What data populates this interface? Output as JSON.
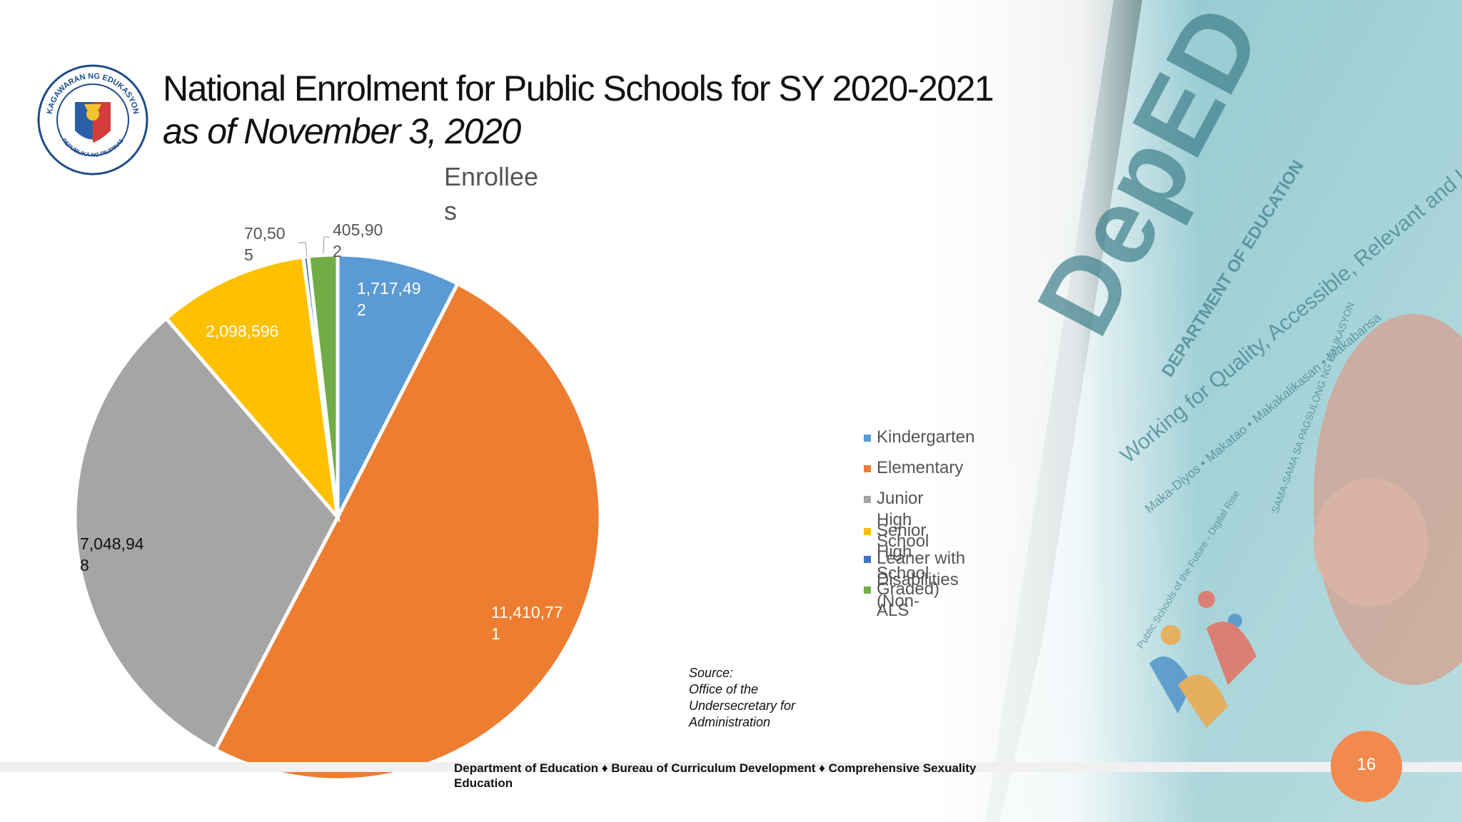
{
  "slide": {
    "title_line1": "National Enrolment for Public Schools for SY 2020-2021",
    "title_line2": "as of November 3, 2020",
    "source_heading": "Source:",
    "source_body": "Office of the Undersecretary for Administration",
    "footer": "Department of Education ♦ Bureau of Curriculum Development ♦ Comprehensive Sexuality Education",
    "page_number": "16",
    "logo": {
      "icon": "deped-seal-icon",
      "text_top": "KAGAWARAN NG EDUKASYON",
      "text_bottom": "REPUBLIKA NG PILIPINAS"
    },
    "background_photo": {
      "icon": "tablet-photo-icon",
      "text": [
        "DepED",
        "DEPARTMENT OF EDUCATION",
        "Working for Quality, Accessible, Relevant and Liberating Education",
        "Maka-Diyos • Makatao • Makakalikasan • Makabansa",
        "Public Schools of the Future - Digital Rise",
        "SAMA-SAMA SA PAGSULONG NG EDUKASYON"
      ]
    }
  },
  "colors": {
    "accent": "#f28a50"
  },
  "chart_data": {
    "type": "pie",
    "title": "Enrollees",
    "start_angle_deg": 0,
    "direction": "clockwise",
    "categories": [
      "Kindergarten",
      "Elementary",
      "Junior High School",
      "Senior High School",
      "Leaner with Disabilities (Non-Graded)",
      "ALS"
    ],
    "values": [
      1717492,
      11410771,
      7048948,
      2098596,
      70505,
      405902
    ],
    "data_labels": [
      "1,717,492",
      "11,410,771",
      "7,048,948",
      "2,098,596",
      "70,505",
      "405,902"
    ],
    "data_label_lines": [
      [
        "1,717,49",
        "2"
      ],
      [
        "11,410,77",
        "1"
      ],
      [
        "7,048,94",
        "8"
      ],
      [
        "2,098,596"
      ],
      [
        "70,50",
        "5"
      ],
      [
        "405,90",
        "2"
      ]
    ],
    "label_color": [
      "#ffffff",
      "#ffffff",
      "#111111",
      "#ffffff",
      "#555555",
      "#555555"
    ],
    "colors": [
      "#5b9bd5",
      "#ed7d31",
      "#a5a5a5",
      "#ffc000",
      "#4472c4",
      "#70ad47"
    ],
    "legend": {
      "position": "right",
      "entries": [
        "Kindergarten",
        "Elementary",
        "Junior High School",
        "Senior High School",
        "Leaner with Disabilities (Non-",
        "Graded)  ALS"
      ]
    }
  }
}
